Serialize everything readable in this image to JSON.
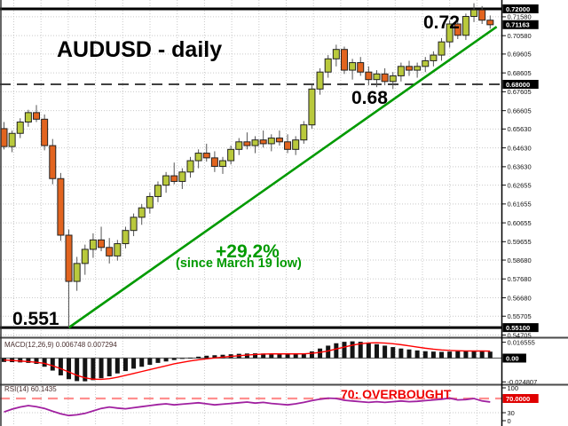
{
  "ui": {
    "title": "AUDUSD - daily",
    "annotations": {
      "resistance": "0.72",
      "mid": "0.68",
      "low": "0.551",
      "gain": "+29.2%",
      "gain_sub": "(since March 19 low)",
      "overbought": "70: OVERBOUGHT"
    },
    "macd_label": "MACD(12,26,9) 0.006748 0.007294",
    "rsi_label": "RSI(14) 60.1435"
  },
  "colors": {
    "bull": "#b9c93c",
    "bear": "#e2641f",
    "wick": "#555555",
    "candle_border": "#222222",
    "trendline": "#009a00",
    "macd_bar": "#141414",
    "macd_signal": "#ff0000",
    "macd_zero": "#666666",
    "rsi_line": "#a020a0",
    "overbought_line": "#ff8f8f",
    "grid": "#c9c9c9",
    "separator": "#4a4a4a",
    "hline": "#000000",
    "axis_text": "#111111",
    "axis_highlight_bg": "#000000",
    "axis_highlight_red_bg": "#e00000",
    "axis_highlight_text": "#ffffff"
  },
  "chart_data": [
    {
      "type": "candlestick",
      "title": "AUDUSD - daily",
      "ylim": [
        0.5466,
        0.7247
      ],
      "y_ticks": [
        {
          "t": "0.72000",
          "hl": "black"
        },
        {
          "t": "0.71580"
        },
        {
          "t": "0.71163",
          "hl": "black"
        },
        {
          "t": "0.70580"
        },
        {
          "t": "0.69605"
        },
        {
          "t": "0.68605"
        },
        {
          "t": "0.68000",
          "hl": "black"
        },
        {
          "t": "0.67605"
        },
        {
          "t": "0.66605"
        },
        {
          "t": "0.65630"
        },
        {
          "t": "0.64630"
        },
        {
          "t": "0.63630"
        },
        {
          "t": "0.62655"
        },
        {
          "t": "0.61655"
        },
        {
          "t": "0.60655"
        },
        {
          "t": "0.59655"
        },
        {
          "t": "0.58680"
        },
        {
          "t": "0.57680"
        },
        {
          "t": "0.56680"
        },
        {
          "t": "0.55705"
        },
        {
          "t": "0.55100",
          "hl": "black"
        },
        {
          "t": "0.54705"
        }
      ],
      "hlines": [
        {
          "price": 0.72,
          "style": "thick"
        },
        {
          "price": 0.68,
          "style": "dashed"
        },
        {
          "price": 0.551,
          "style": "thick"
        }
      ],
      "trendline": {
        "from_index": 8,
        "from_price": 0.551,
        "to_index": 60.8,
        "to_price": 0.7105
      },
      "current_price": 0.71163,
      "candles": [
        [
          0.6565,
          0.66,
          0.6455,
          0.647
        ],
        [
          0.647,
          0.6555,
          0.644,
          0.654
        ],
        [
          0.654,
          0.662,
          0.6515,
          0.66
        ],
        [
          0.66,
          0.6665,
          0.6575,
          0.665
        ],
        [
          0.665,
          0.669,
          0.66,
          0.6615
        ],
        [
          0.6615,
          0.664,
          0.645,
          0.6475
        ],
        [
          0.6475,
          0.651,
          0.627,
          0.63
        ],
        [
          0.63,
          0.633,
          0.597,
          0.6
        ],
        [
          0.6,
          0.603,
          0.551,
          0.5755
        ],
        [
          0.5755,
          0.5885,
          0.5705,
          0.585
        ],
        [
          0.585,
          0.595,
          0.579,
          0.5925
        ],
        [
          0.5925,
          0.601,
          0.588,
          0.5975
        ],
        [
          0.5975,
          0.6045,
          0.5915,
          0.5935
        ],
        [
          0.5935,
          0.5985,
          0.585,
          0.589
        ],
        [
          0.589,
          0.5975,
          0.5865,
          0.5955
        ],
        [
          0.5955,
          0.6045,
          0.593,
          0.6025
        ],
        [
          0.6025,
          0.6115,
          0.5995,
          0.6095
        ],
        [
          0.6095,
          0.6165,
          0.6055,
          0.6145
        ],
        [
          0.6145,
          0.6225,
          0.6115,
          0.6205
        ],
        [
          0.6205,
          0.6285,
          0.6175,
          0.6265
        ],
        [
          0.6265,
          0.6335,
          0.6225,
          0.6315
        ],
        [
          0.6315,
          0.6385,
          0.627,
          0.6285
        ],
        [
          0.6285,
          0.6355,
          0.6245,
          0.6335
        ],
        [
          0.6335,
          0.6415,
          0.6305,
          0.6395
        ],
        [
          0.6395,
          0.6455,
          0.6355,
          0.6435
        ],
        [
          0.6435,
          0.6485,
          0.639,
          0.641
        ],
        [
          0.641,
          0.6445,
          0.6335,
          0.6365
        ],
        [
          0.6365,
          0.6415,
          0.6325,
          0.6395
        ],
        [
          0.6395,
          0.6475,
          0.6375,
          0.6455
        ],
        [
          0.6455,
          0.6515,
          0.6425,
          0.6495
        ],
        [
          0.6495,
          0.6545,
          0.6455,
          0.6475
        ],
        [
          0.6475,
          0.6525,
          0.6435,
          0.6505
        ],
        [
          0.6505,
          0.6555,
          0.6465,
          0.6485
        ],
        [
          0.6485,
          0.6535,
          0.6445,
          0.6515
        ],
        [
          0.6515,
          0.6555,
          0.6475,
          0.6495
        ],
        [
          0.6495,
          0.6535,
          0.6435,
          0.6455
        ],
        [
          0.6455,
          0.6525,
          0.6425,
          0.6505
        ],
        [
          0.6505,
          0.6605,
          0.6485,
          0.6585
        ],
        [
          0.6585,
          0.6795,
          0.6565,
          0.6775
        ],
        [
          0.6775,
          0.6885,
          0.6745,
          0.6865
        ],
        [
          0.6865,
          0.6955,
          0.6835,
          0.6935
        ],
        [
          0.6935,
          0.701,
          0.6895,
          0.6985
        ],
        [
          0.6985,
          0.7,
          0.6855,
          0.6875
        ],
        [
          0.6875,
          0.6935,
          0.6825,
          0.6915
        ],
        [
          0.6915,
          0.6945,
          0.6845,
          0.6865
        ],
        [
          0.6865,
          0.6895,
          0.6795,
          0.6825
        ],
        [
          0.6825,
          0.6875,
          0.6785,
          0.6855
        ],
        [
          0.6855,
          0.6885,
          0.6795,
          0.6815
        ],
        [
          0.6815,
          0.6865,
          0.6775,
          0.6845
        ],
        [
          0.6845,
          0.6915,
          0.6815,
          0.6895
        ],
        [
          0.6895,
          0.6925,
          0.6845,
          0.6875
        ],
        [
          0.6875,
          0.6915,
          0.6835,
          0.6895
        ],
        [
          0.6895,
          0.6945,
          0.6865,
          0.6925
        ],
        [
          0.6925,
          0.6975,
          0.6895,
          0.6955
        ],
        [
          0.6955,
          0.7045,
          0.6925,
          0.7025
        ],
        [
          0.7025,
          0.714,
          0.6995,
          0.712
        ],
        [
          0.712,
          0.715,
          0.704,
          0.706
        ],
        [
          0.706,
          0.7175,
          0.7035,
          0.716
        ],
        [
          0.716,
          0.723,
          0.713,
          0.7195
        ],
        [
          0.7195,
          0.7215,
          0.712,
          0.714
        ],
        [
          0.714,
          0.7165,
          0.7095,
          0.7116
        ]
      ]
    },
    {
      "type": "bar",
      "name": "MACD",
      "settings": "12,26,9",
      "current_macd": 0.006748,
      "current_signal": 0.007294,
      "y_ticks": [
        {
          "t": "0.016555"
        },
        {
          "t": "0.00",
          "hl": "black"
        },
        {
          "t": "-0.024807"
        }
      ],
      "values": [
        -0.004,
        -0.0042,
        -0.0045,
        -0.005,
        -0.006,
        -0.009,
        -0.013,
        -0.018,
        -0.022,
        -0.024,
        -0.0242,
        -0.023,
        -0.021,
        -0.019,
        -0.016,
        -0.0135,
        -0.011,
        -0.009,
        -0.007,
        -0.005,
        -0.0035,
        -0.002,
        -0.0008,
        0.0005,
        0.0015,
        0.0025,
        0.003,
        0.0035,
        0.004,
        0.0045,
        0.0048,
        0.005,
        0.0048,
        0.0045,
        0.0042,
        0.004,
        0.0042,
        0.005,
        0.007,
        0.01,
        0.013,
        0.0155,
        0.017,
        0.0175,
        0.017,
        0.016,
        0.0145,
        0.013,
        0.0115,
        0.01,
        0.009,
        0.008,
        0.0072,
        0.0068,
        0.0065,
        0.0068,
        0.0072,
        0.0075,
        0.0078,
        0.0072,
        0.006748
      ],
      "signal": [
        -0.002,
        -0.0025,
        -0.003,
        -0.0036,
        -0.0043,
        -0.0055,
        -0.008,
        -0.011,
        -0.0145,
        -0.018,
        -0.0205,
        -0.022,
        -0.0222,
        -0.0215,
        -0.02,
        -0.018,
        -0.016,
        -0.014,
        -0.012,
        -0.01,
        -0.008,
        -0.006,
        -0.0045,
        -0.003,
        -0.0018,
        -0.0008,
        0.0002,
        0.001,
        0.0018,
        0.0025,
        0.0032,
        0.0038,
        0.0042,
        0.0044,
        0.0045,
        0.0044,
        0.0044,
        0.0045,
        0.005,
        0.006,
        0.0075,
        0.0095,
        0.0115,
        0.0135,
        0.015,
        0.0158,
        0.016,
        0.0157,
        0.015,
        0.014,
        0.0128,
        0.0115,
        0.0103,
        0.0093,
        0.0085,
        0.008,
        0.0077,
        0.0075,
        0.0074,
        0.0074,
        0.007294
      ]
    },
    {
      "type": "line",
      "name": "RSI",
      "settings": "14",
      "current": 60.1435,
      "overbought_level": 70,
      "gridline_level": 30,
      "y_ticks": [
        {
          "t": "100"
        },
        {
          "t": "70.0000",
          "hl": "red"
        },
        {
          "t": "30"
        },
        {
          "t": "0"
        }
      ],
      "values": [
        32,
        40,
        46,
        50,
        47,
        42,
        34,
        27,
        22,
        24,
        28,
        35,
        42,
        46,
        43,
        41,
        44,
        47,
        50,
        53,
        55,
        52,
        54,
        56,
        58,
        55,
        52,
        54,
        56,
        58,
        60,
        57,
        59,
        56,
        54,
        52,
        55,
        59,
        64,
        68,
        71,
        70,
        65,
        63,
        61,
        59,
        61,
        59,
        61,
        63,
        61,
        62,
        64,
        66,
        68,
        71,
        66,
        67,
        70,
        63,
        60.1435
      ]
    }
  ]
}
